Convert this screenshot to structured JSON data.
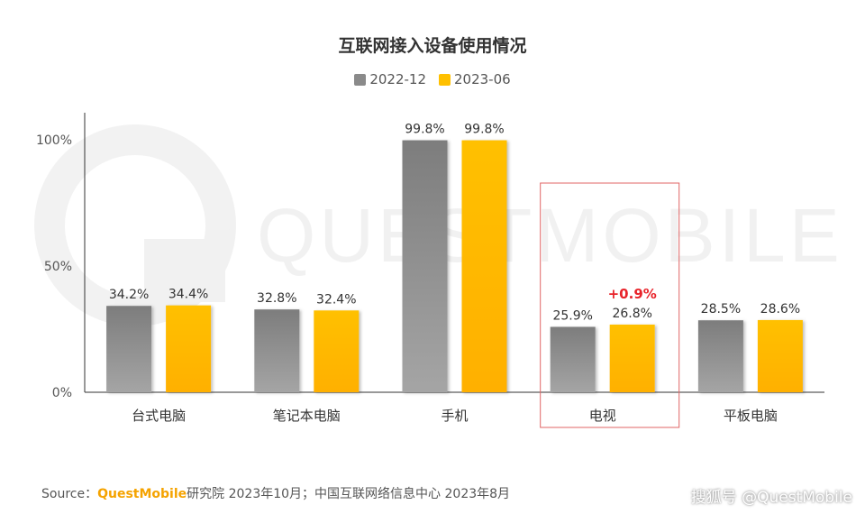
{
  "chart_data": {
    "type": "bar",
    "title": "互联网接入设备使用情况",
    "categories": [
      "台式电脑",
      "笔记本电脑",
      "手机",
      "电视",
      "平板电脑"
    ],
    "series": [
      {
        "name": "2022-12",
        "values": [
          34.2,
          32.8,
          99.8,
          25.9,
          28.5
        ],
        "labels": [
          "34.2%",
          "32.8%",
          "99.8%",
          "25.9%",
          "28.5%"
        ],
        "color": "#8a8a8a"
      },
      {
        "name": "2023-06",
        "values": [
          34.4,
          32.4,
          99.8,
          26.8,
          28.6
        ],
        "labels": [
          "34.4%",
          "32.4%",
          "99.8%",
          "26.8%",
          "28.6%"
        ],
        "color": "#ffc000"
      }
    ],
    "ylim": [
      0,
      100
    ],
    "yticks": [
      "0%",
      "50%",
      "100%"
    ],
    "ytick_values": [
      0,
      50,
      100
    ],
    "highlight": {
      "category": "电视",
      "annotation": "+0.9%",
      "annotation_color": "#e8232a",
      "box_color": "#e06666"
    },
    "legend_position": "top-center",
    "grid": false
  },
  "watermark": "QUESTMOBILE",
  "source": {
    "prefix": "Source：",
    "brand": "QuestMobile",
    "rest": "研究院 2023年10月；中国互联网络信息中心 2023年8月"
  },
  "footer_credit": "搜狐号 @QuestMobile"
}
